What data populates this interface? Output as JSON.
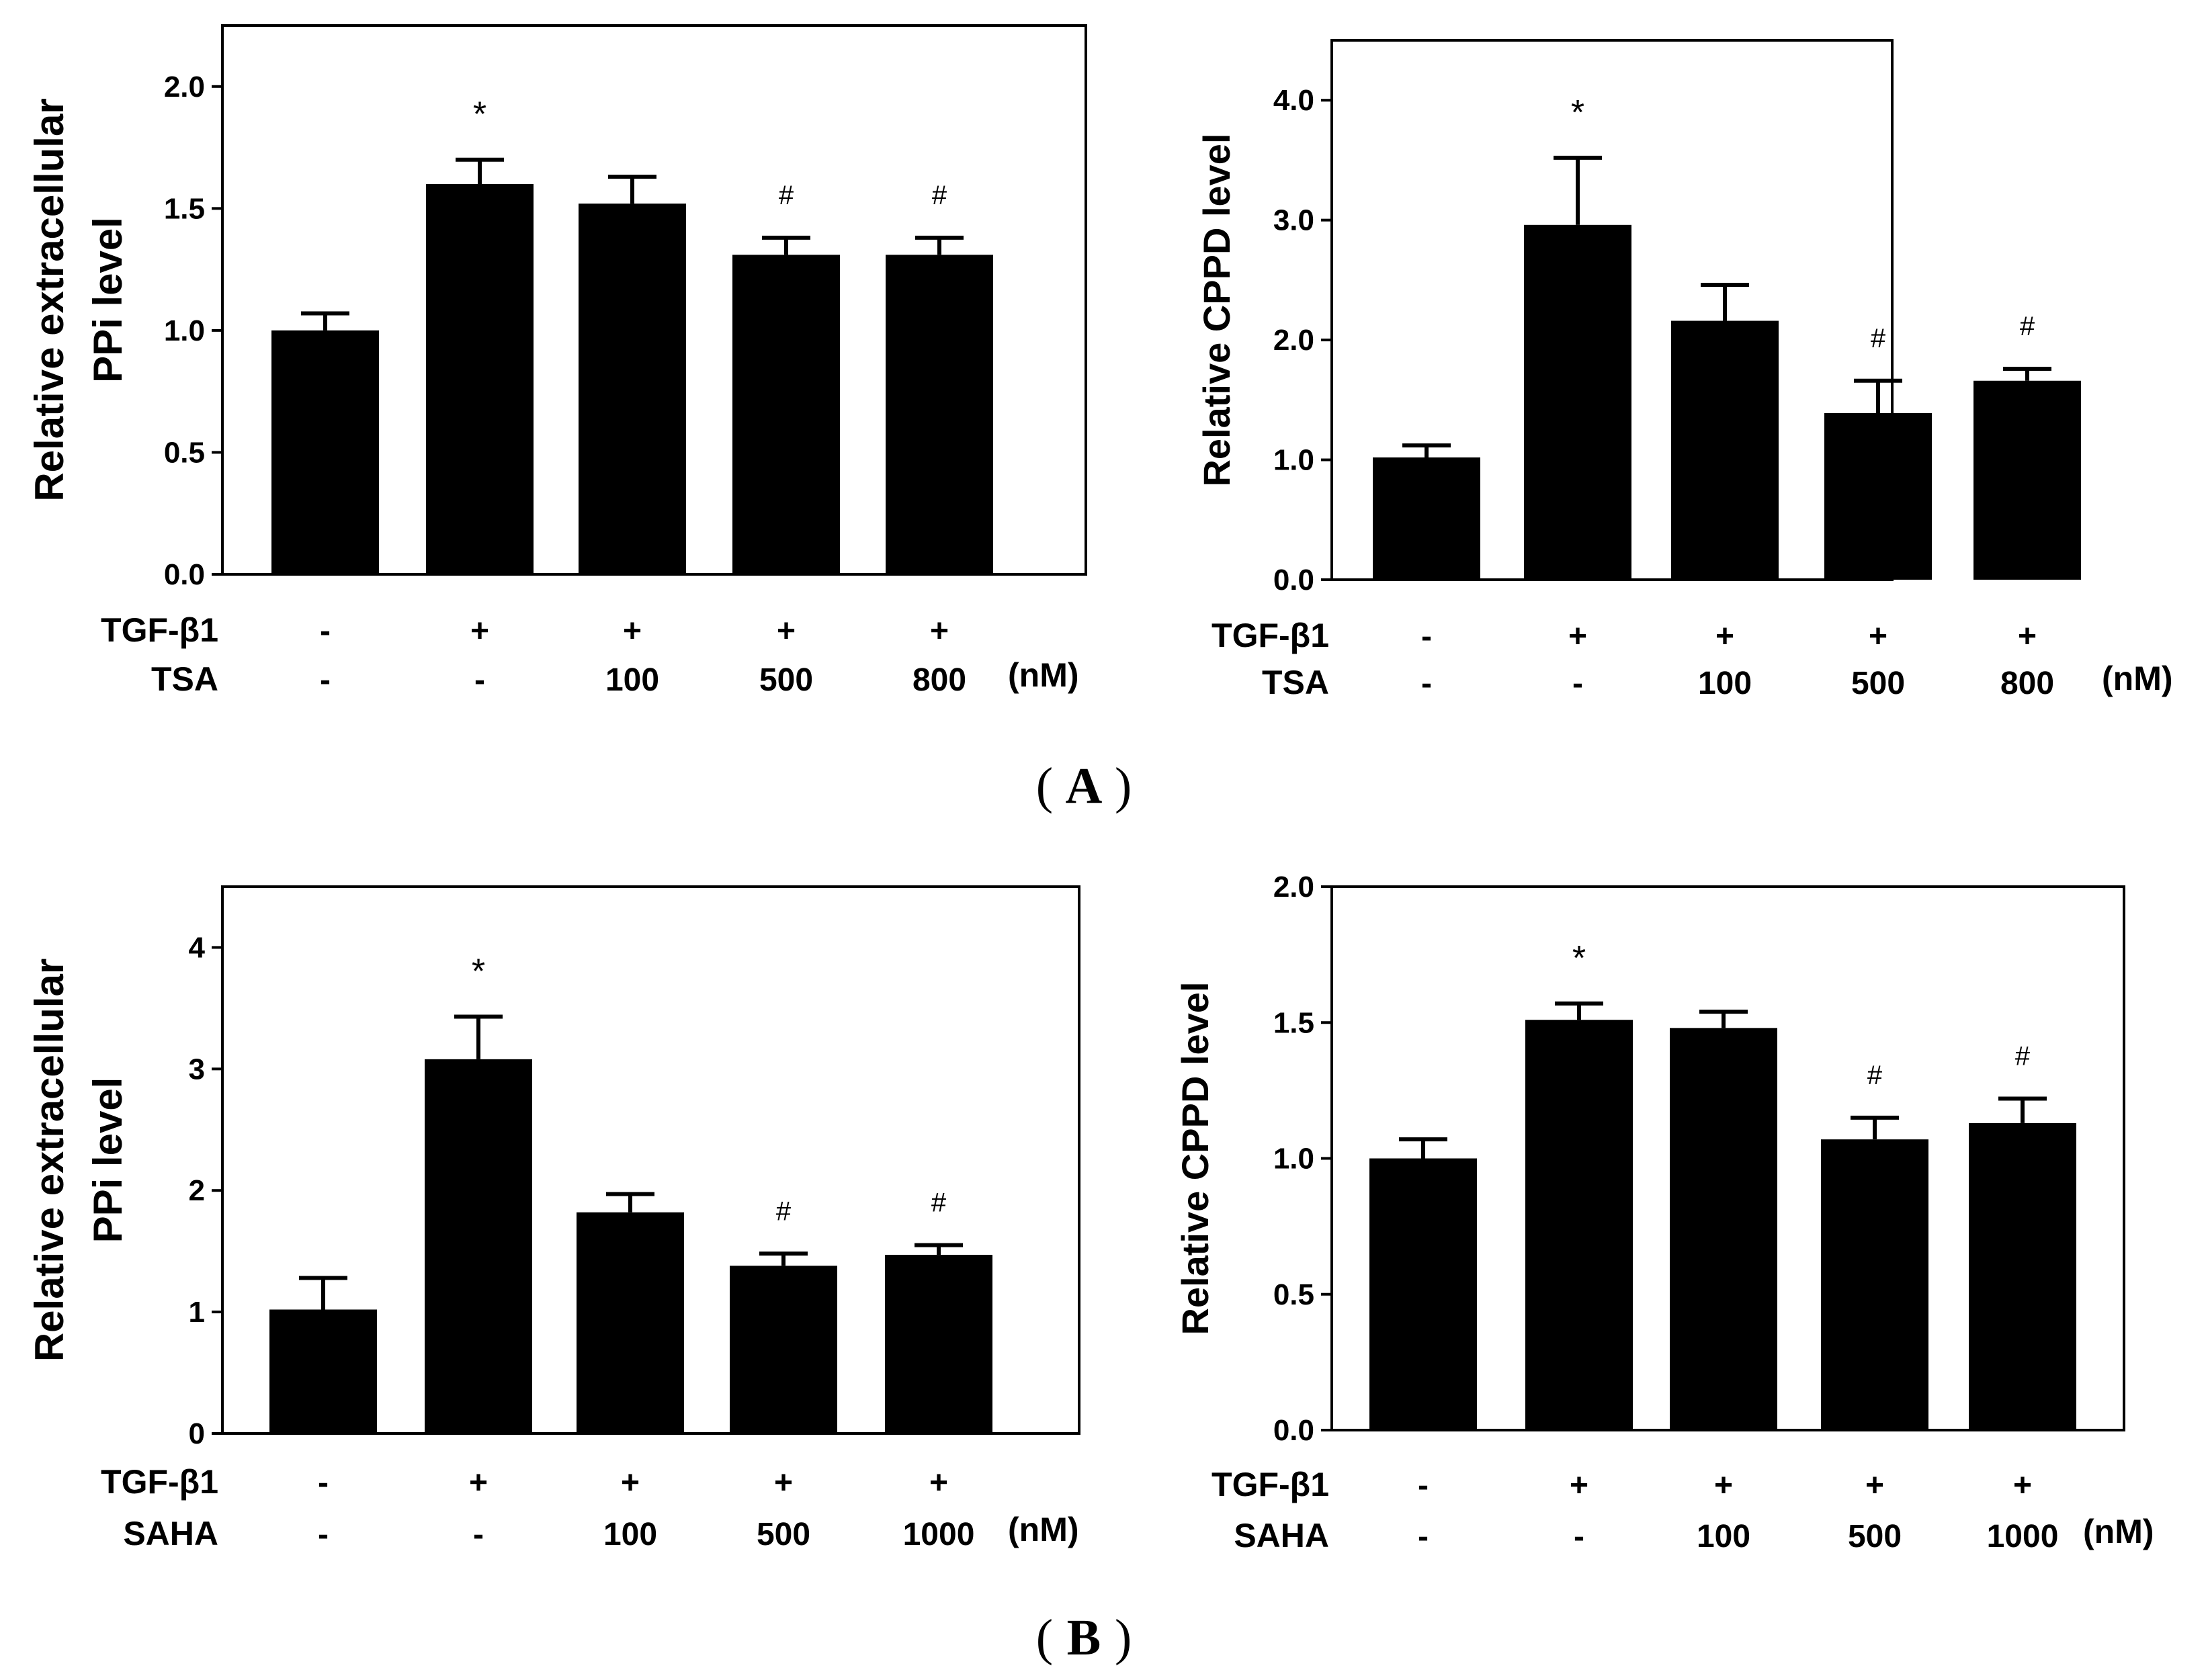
{
  "panel_labels": [
    "A",
    "B"
  ],
  "chart_data": [
    {
      "type": "bar",
      "title": "",
      "ylabel": [
        "Relative extracellular",
        "PPi level"
      ],
      "ylim": [
        0,
        2.25
      ],
      "yticks": [
        0.0,
        0.5,
        1.0,
        1.5,
        2.0
      ],
      "ytick_labels": [
        "0.0",
        "0.5",
        "1.0",
        "1.5",
        "2.0"
      ],
      "values": [
        1.0,
        1.6,
        1.52,
        1.31,
        1.31
      ],
      "errors": [
        0.07,
        0.1,
        0.11,
        0.07,
        0.07
      ],
      "annotations": [
        "",
        "*",
        "",
        "#",
        "#"
      ],
      "conditions": [
        {
          "name": "TGF-β1",
          "values": [
            "-",
            "+",
            "+",
            "+",
            "+"
          ]
        },
        {
          "name": "TSA",
          "values": [
            "-",
            "-",
            "100",
            "500",
            "800"
          ]
        }
      ],
      "unit": "(nM)"
    },
    {
      "type": "bar",
      "title": "",
      "ylabel": [
        "Relative CPPD level"
      ],
      "ylim": [
        0,
        4.5
      ],
      "yticks": [
        0.0,
        1.0,
        2.0,
        3.0,
        4.0
      ],
      "ytick_labels": [
        "0.0",
        "1.0",
        "2.0",
        "3.0",
        "4.0"
      ],
      "values": [
        1.02,
        2.96,
        2.16,
        1.39,
        1.66
      ],
      "errors": [
        0.1,
        0.56,
        0.3,
        0.27,
        0.1
      ],
      "annotations": [
        "",
        "*",
        "",
        "#",
        "#"
      ],
      "conditions": [
        {
          "name": "TGF-β1",
          "values": [
            "-",
            "+",
            "+",
            "+",
            "+"
          ]
        },
        {
          "name": "TSA",
          "values": [
            "-",
            "-",
            "100",
            "500",
            "800"
          ]
        }
      ],
      "unit": "(nM)"
    },
    {
      "type": "bar",
      "title": "",
      "ylabel": [
        "Relative extracellular",
        "PPi level"
      ],
      "ylim": [
        0,
        4.5
      ],
      "yticks": [
        0,
        1,
        2,
        3,
        4
      ],
      "ytick_labels": [
        "0",
        "1",
        "2",
        "3",
        "4"
      ],
      "values": [
        1.02,
        3.08,
        1.82,
        1.38,
        1.47
      ],
      "errors": [
        0.26,
        0.35,
        0.15,
        0.1,
        0.08
      ],
      "annotations": [
        "",
        "*",
        "",
        "#",
        "#"
      ],
      "conditions": [
        {
          "name": "TGF-β1",
          "values": [
            "-",
            "+",
            "+",
            "+",
            "+"
          ]
        },
        {
          "name": "SAHA",
          "values": [
            "-",
            "-",
            "100",
            "500",
            "1000"
          ]
        }
      ],
      "unit": "(nM)"
    },
    {
      "type": "bar",
      "title": "",
      "ylabel": [
        "Relative CPPD level"
      ],
      "ylim": [
        0,
        2.0
      ],
      "yticks": [
        0.0,
        0.5,
        1.0,
        1.5,
        2.0
      ],
      "ytick_labels": [
        "0.0",
        "0.5",
        "1.0",
        "1.5",
        "2.0"
      ],
      "values": [
        1.0,
        1.51,
        1.48,
        1.07,
        1.13
      ],
      "errors": [
        0.07,
        0.06,
        0.06,
        0.08,
        0.09
      ],
      "annotations": [
        "",
        "*",
        "",
        "#",
        "#"
      ],
      "conditions": [
        {
          "name": "TGF-β1",
          "values": [
            "-",
            "+",
            "+",
            "+",
            "+"
          ]
        },
        {
          "name": "SAHA",
          "values": [
            "-",
            "-",
            "100",
            "500",
            "1000"
          ]
        }
      ],
      "unit": "(nM)"
    }
  ]
}
